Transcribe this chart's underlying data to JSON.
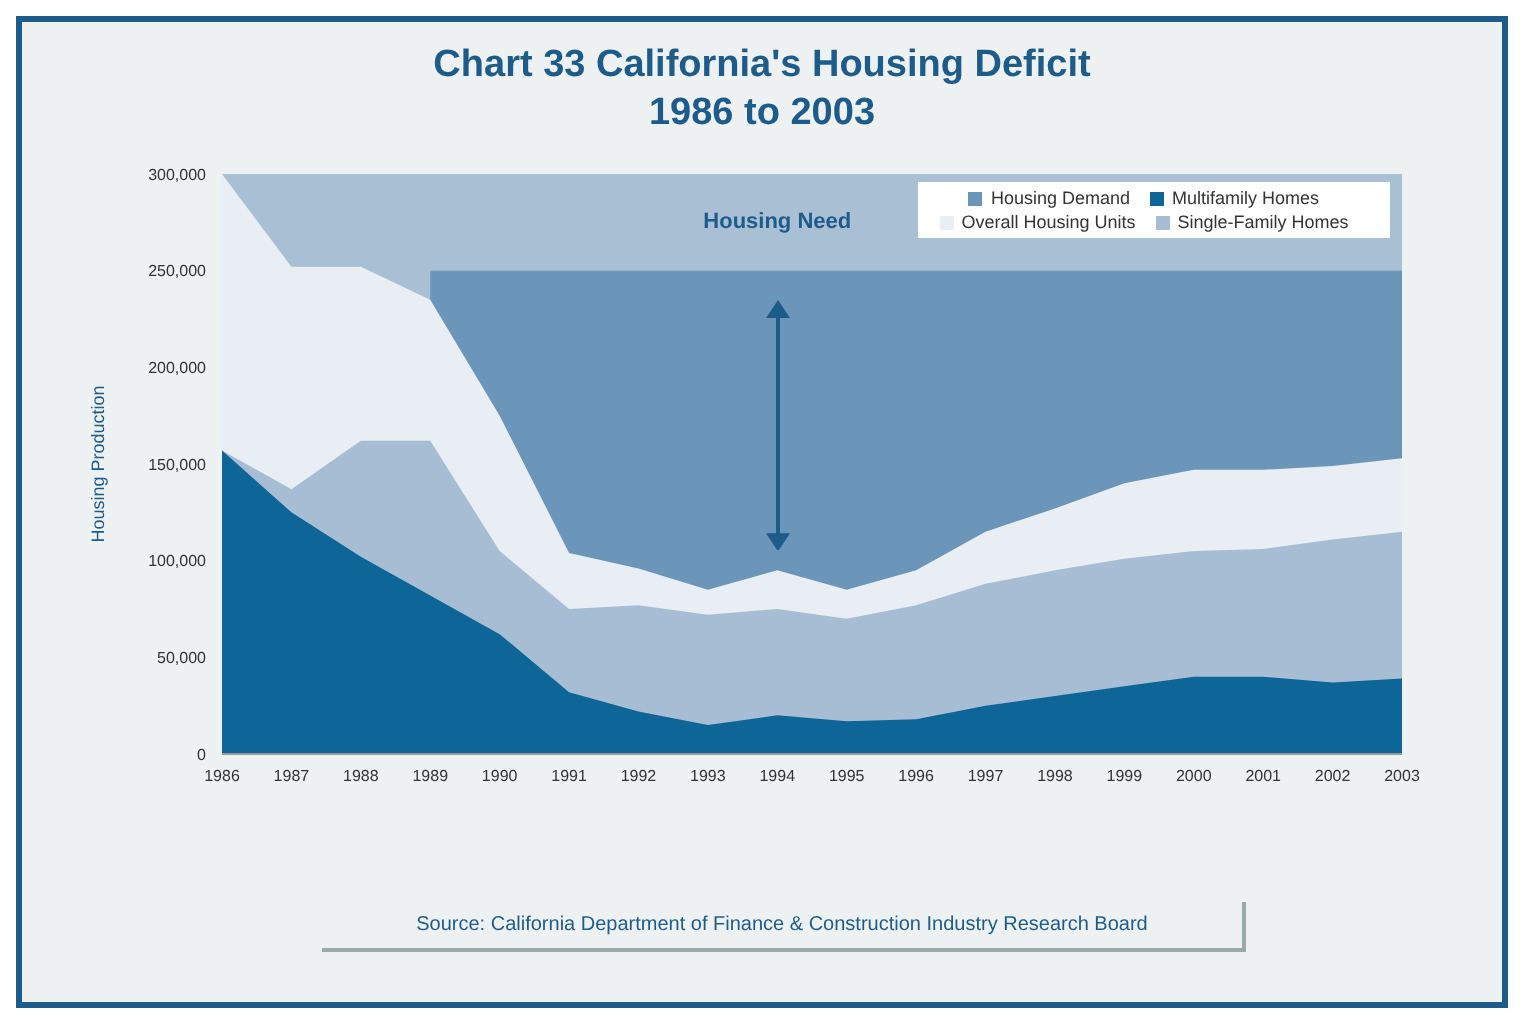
{
  "chart_data": {
    "type": "area",
    "title": "Chart 33 California's Housing Deficit",
    "subtitle": "1986 to 2003",
    "ylabel": "Housing Production",
    "categories": [
      "1986",
      "1987",
      "1988",
      "1989",
      "1990",
      "1991",
      "1992",
      "1993",
      "1994",
      "1995",
      "1996",
      "1997",
      "1998",
      "1999",
      "2000",
      "2001",
      "2002",
      "2003"
    ],
    "series": [
      {
        "name": "Housing Demand",
        "color": "#6b96ba",
        "values": [
          null,
          null,
          null,
          250000,
          250000,
          250000,
          250000,
          250000,
          250000,
          250000,
          250000,
          250000,
          250000,
          250000,
          250000,
          250000,
          250000,
          250000
        ]
      },
      {
        "name": "Overall Housing Units",
        "color": "#e8eef3",
        "values": [
          300000,
          252000,
          252000,
          235000,
          175000,
          104000,
          96000,
          85000,
          95000,
          85000,
          95000,
          115000,
          127000,
          140000,
          147000,
          147000,
          149000,
          153000
        ]
      },
      {
        "name": "Single-Family Homes",
        "color": "#a6bdd3",
        "values": [
          157000,
          137000,
          162000,
          162000,
          105000,
          75000,
          77000,
          72000,
          75000,
          70000,
          77000,
          88000,
          95000,
          101000,
          105000,
          106000,
          111000,
          115000
        ]
      },
      {
        "name": "Multifamily Homes",
        "color": "#0e6597",
        "values": [
          157000,
          125000,
          102000,
          82000,
          62000,
          32000,
          22000,
          15000,
          20000,
          17000,
          18000,
          25000,
          30000,
          35000,
          40000,
          40000,
          37000,
          39000
        ]
      }
    ],
    "ylim": [
      0,
      300000
    ],
    "yticks": [
      {
        "value": 0,
        "label": "0"
      },
      {
        "value": 50000,
        "label": "50,000"
      },
      {
        "value": 100000,
        "label": "100,000"
      },
      {
        "value": 150000,
        "label": "150,000"
      },
      {
        "value": 200000,
        "label": "200,000"
      },
      {
        "value": 250000,
        "label": "250,000"
      },
      {
        "value": 300000,
        "label": "300,000"
      }
    ],
    "legend": "top right",
    "grid": false,
    "annotations": [
      "Housing Need",
      "Source: California Department of Finance & Construction Industry Research Board"
    ]
  }
}
